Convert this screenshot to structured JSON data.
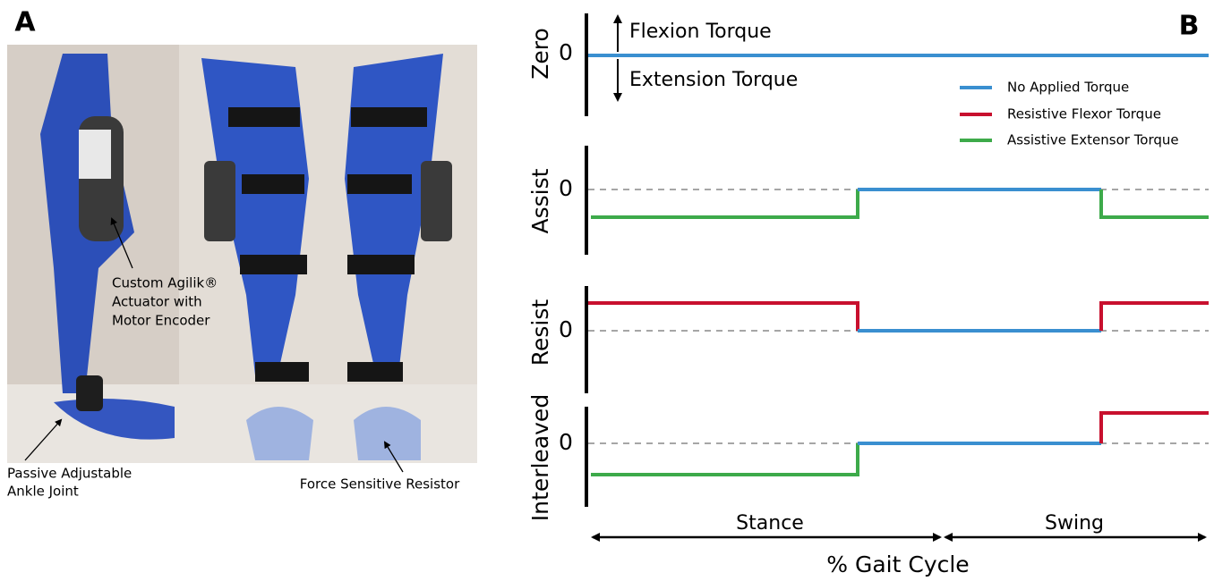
{
  "panel_a": {
    "label": "A",
    "annotations": {
      "actuator": [
        "Custom Agilik®",
        "Actuator with",
        "Motor Encoder"
      ],
      "ankle": [
        "Passive Adjustable",
        "Ankle Joint"
      ],
      "sensor": "Force Sensitive Resistor"
    }
  },
  "panel_b": {
    "label": "B",
    "zero_note": {
      "up": "Flexion Torque",
      "down": "Extension Torque"
    },
    "legend": [
      {
        "name": "No Applied Torque",
        "color": "#3a8fd0"
      },
      {
        "name": "Resistive Flexor Torque",
        "color": "#c8102e"
      },
      {
        "name": "Assistive Extensor Torque",
        "color": "#3daa4a"
      }
    ],
    "rows": [
      {
        "name": "Zero",
        "tick": "0"
      },
      {
        "name": "Assist",
        "tick": "0"
      },
      {
        "name": "Resist",
        "tick": "0"
      },
      {
        "name": "Interleaved",
        "tick": "0"
      }
    ],
    "phases": [
      "Stance",
      "Swing"
    ],
    "x_label": "% Gait Cycle"
  }
}
